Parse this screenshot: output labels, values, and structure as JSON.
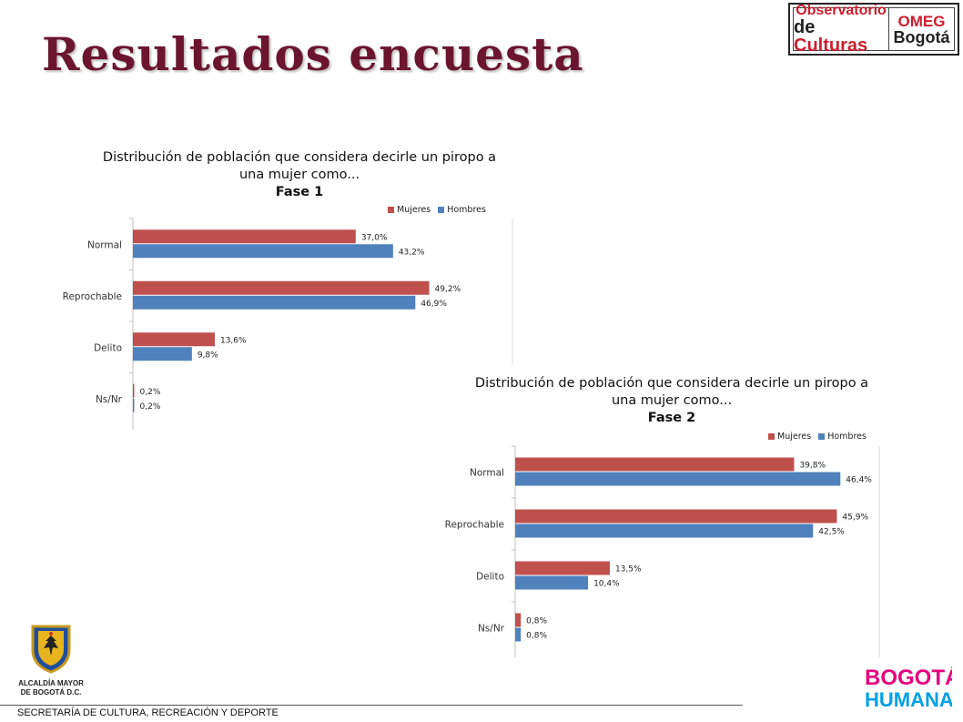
{
  "slide": {
    "title": "Resultados encuesta",
    "footer": "SECRETARÍA DE CULTURA, RECREACIÓN Y DEPORTE"
  },
  "logos": {
    "observatorio_line1": "Observatorio",
    "observatorio_line2_prefix": "de",
    "observatorio_line2_word": "Culturas",
    "omeg_line1": "OMEG",
    "omeg_line2": "Bogotá",
    "alcaldia_line1": "ALCALDÍA MAYOR",
    "alcaldia_line2": "DE BOGOTÁ D.C.",
    "bh_line1": "BOGOTÁ",
    "bh_line2": "HUMANA"
  },
  "colors": {
    "title": "#6b1530",
    "mujeres": "#c0504d",
    "hombres": "#4f81bd",
    "bh_pink": "#e6007e",
    "bh_blue": "#00a1e4"
  },
  "chart_data": [
    {
      "type": "bar",
      "orientation": "horizontal",
      "title_line1": "Distribución de población que considera decirle un piropo a",
      "title_line2": "una mujer como...",
      "title_line3": "Fase 1",
      "categories": [
        "Normal",
        "Reprochable",
        "Delito",
        "Ns/Nr"
      ],
      "series": [
        {
          "name": "Mujeres",
          "values": [
            37.0,
            49.2,
            13.6,
            0.2
          ],
          "labels": [
            "37,0%",
            "49,2%",
            "13,6%",
            "0,2%"
          ]
        },
        {
          "name": "Hombres",
          "values": [
            43.2,
            46.9,
            9.8,
            0.2
          ],
          "labels": [
            "43,2%",
            "46,9%",
            "9,8%",
            "0,2%"
          ]
        }
      ],
      "xlim": [
        0,
        60
      ],
      "legend": "top-right",
      "grid": false
    },
    {
      "type": "bar",
      "orientation": "horizontal",
      "title_line1": "Distribución de población que considera decirle un piropo a",
      "title_line2": "una mujer como...",
      "title_line3": "Fase 2",
      "categories": [
        "Normal",
        "Reprochable",
        "Delito",
        "Ns/Nr"
      ],
      "series": [
        {
          "name": "Mujeres",
          "values": [
            39.8,
            45.9,
            13.5,
            0.8
          ],
          "labels": [
            "39,8%",
            "45,9%",
            "13,5%",
            "0,8%"
          ]
        },
        {
          "name": "Hombres",
          "values": [
            46.4,
            42.5,
            10.4,
            0.8
          ],
          "labels": [
            "46,4%",
            "42,5%",
            "10,4%",
            "0,8%"
          ]
        }
      ],
      "xlim": [
        0,
        50
      ],
      "legend": "top-right",
      "grid": false
    }
  ]
}
